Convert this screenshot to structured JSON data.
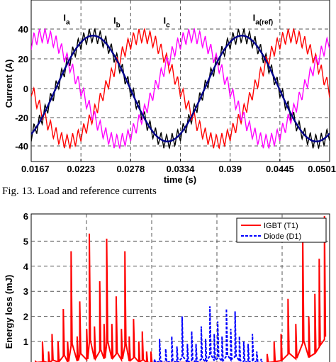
{
  "caption": "Fig. 13.  Load and reference currents",
  "chart_data": [
    {
      "type": "line",
      "title": "",
      "xlabel": "time (s)",
      "ylabel": "Current (A)",
      "xlim": [
        0.0167,
        0.0501
      ],
      "ylim": [
        -45,
        45
      ],
      "xticks": [
        "0.0167",
        "0.0223",
        "0.0278",
        "0.0334",
        "0.039",
        "0.0445",
        "0.0501"
      ],
      "yticks": [
        "40",
        "20",
        "0",
        "-20",
        "-40"
      ],
      "grid": true,
      "annotations": [
        {
          "text": "I",
          "subscript": "a",
          "x": 0.0203,
          "y": 46
        },
        {
          "text": "I",
          "subscript": "b",
          "x": 0.0259,
          "y": 44
        },
        {
          "text": "I",
          "subscript": "c",
          "x": 0.0315,
          "y": 44
        },
        {
          "text": "I",
          "subscript": "a(ref)",
          "x": 0.0415,
          "y": 46
        }
      ],
      "series": [
        {
          "name": "I_a",
          "color": "#000000",
          "amplitude": 36,
          "ripple": 5,
          "phase_deg": 0,
          "frequency_hz": 60
        },
        {
          "name": "I_b",
          "color": "#ff0000",
          "amplitude": 36,
          "ripple": 5,
          "phase_deg": -120,
          "frequency_hz": 60
        },
        {
          "name": "I_c",
          "color": "#ff00ff",
          "amplitude": 36,
          "ripple": 5,
          "phase_deg": 120,
          "frequency_hz": 60
        },
        {
          "name": "I_a(ref)",
          "color": "#00008b",
          "amplitude": 36,
          "ripple": 0,
          "phase_deg": 0,
          "frequency_hz": 60
        }
      ]
    },
    {
      "type": "line",
      "title": "",
      "xlabel": "",
      "ylabel": "Energy loss (mJ)",
      "ylim": [
        0,
        6
      ],
      "yticks": [
        "6",
        "5",
        "4",
        "3",
        "2",
        "1"
      ],
      "grid": true,
      "legend": {
        "position": "top-right",
        "entries": [
          "IGBT (T1)",
          "Diode (D1)"
        ]
      },
      "series": [
        {
          "name": "IGBT (T1)",
          "color": "#ff0000",
          "style": "solid",
          "spikes": [
            [
              0.05,
              0.2
            ],
            [
              0.13,
              1.0
            ],
            [
              0.2,
              0.6
            ],
            [
              0.24,
              1.3
            ],
            [
              0.31,
              1.0
            ],
            [
              0.37,
              2.3
            ],
            [
              0.42,
              1.0
            ],
            [
              0.46,
              4.6
            ],
            [
              0.53,
              1.2
            ],
            [
              0.56,
              2.6
            ],
            [
              0.64,
              1.5
            ],
            [
              0.67,
              5.3
            ],
            [
              0.73,
              1.6
            ],
            [
              0.79,
              3.4
            ],
            [
              0.84,
              1.7
            ],
            [
              0.87,
              5.1
            ],
            [
              0.93,
              1.7
            ],
            [
              0.98,
              2.8
            ],
            [
              1.04,
              1.5
            ],
            [
              1.08,
              4.6
            ],
            [
              1.13,
              1.2
            ],
            [
              1.18,
              1.9
            ],
            [
              1.24,
              1.0
            ],
            [
              1.28,
              1.4
            ],
            [
              1.33,
              0.6
            ],
            [
              1.38,
              0.6
            ],
            [
              2.72,
              0.5
            ],
            [
              2.8,
              1.0
            ],
            [
              2.88,
              1.3
            ],
            [
              2.96,
              2.7
            ],
            [
              3.05,
              1.7
            ],
            [
              3.13,
              5.2
            ],
            [
              3.2,
              2.0
            ],
            [
              3.27,
              2.9
            ],
            [
              3.32,
              4.3
            ],
            [
              3.38,
              6.0
            ]
          ]
        },
        {
          "name": "Diode (D1)",
          "color": "#0000ff",
          "style": "dashed",
          "spikes": [
            [
              1.42,
              0.3
            ],
            [
              1.48,
              1.1
            ],
            [
              1.55,
              0.7
            ],
            [
              1.62,
              1.2
            ],
            [
              1.68,
              0.8
            ],
            [
              1.74,
              2.0
            ],
            [
              1.8,
              0.9
            ],
            [
              1.85,
              1.4
            ],
            [
              1.9,
              0.9
            ],
            [
              1.96,
              1.6
            ],
            [
              2.01,
              1.1
            ],
            [
              2.06,
              2.4
            ],
            [
              2.11,
              1.3
            ],
            [
              2.15,
              1.8
            ],
            [
              2.2,
              1.2
            ],
            [
              2.25,
              2.3
            ],
            [
              2.3,
              1.5
            ],
            [
              2.35,
              2.2
            ],
            [
              2.4,
              1.2
            ],
            [
              2.45,
              1.0
            ],
            [
              2.5,
              0.9
            ],
            [
              2.55,
              1.3
            ],
            [
              2.6,
              0.6
            ],
            [
              2.65,
              0.3
            ]
          ]
        }
      ]
    }
  ]
}
